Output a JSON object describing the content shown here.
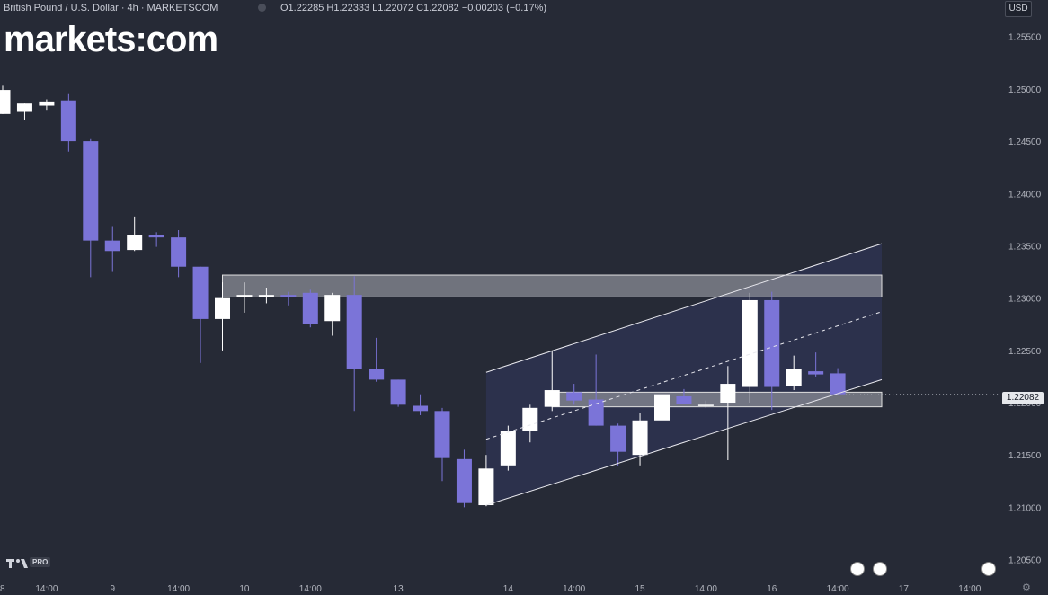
{
  "header": {
    "symbol_title": "British Pound / U.S. Dollar · 4h · MARKETSCOM",
    "ohlc": "O1.22285  H1.22333  L1.22072  C1.22082  −0.00203 (−0.17%)",
    "currency": "USD"
  },
  "brand": {
    "logo_text": "markets:com"
  },
  "footer": {
    "tv_badge": "PRO"
  },
  "colors": {
    "bull": "#ffffff",
    "bear": "#7b74d8",
    "background": "#262a36",
    "channel_fill": "#2e3250",
    "zone_fill": "#8a8c95"
  },
  "chart_data": {
    "type": "candlestick",
    "title": "British Pound / U.S. Dollar · 4h · MARKETSCOM",
    "y_range": [
      1.2035,
      1.2585
    ],
    "y_ticks": [
      "1.25500",
      "1.25000",
      "1.24500",
      "1.24000",
      "1.23500",
      "1.23000",
      "1.22500",
      "1.22000",
      "1.21500",
      "1.21000",
      "1.20500"
    ],
    "x_ticks": [
      {
        "i": -1,
        "label": "8"
      },
      {
        "i": 2,
        "label": "14:00"
      },
      {
        "i": 5,
        "label": "9"
      },
      {
        "i": 8,
        "label": "14:00"
      },
      {
        "i": 11,
        "label": "10"
      },
      {
        "i": 14,
        "label": "14:00"
      },
      {
        "i": 18,
        "label": "13"
      },
      {
        "i": 23,
        "label": "14"
      },
      {
        "i": 26,
        "label": "14:00"
      },
      {
        "i": 29,
        "label": "15"
      },
      {
        "i": 32,
        "label": "14:00"
      },
      {
        "i": 35,
        "label": "16"
      },
      {
        "i": 38,
        "label": "14:00"
      },
      {
        "i": 41,
        "label": "17"
      },
      {
        "i": 44,
        "label": "14:00"
      }
    ],
    "candles": [
      {
        "o": 1.2476,
        "h": 1.2503,
        "l": 1.2476,
        "c": 1.2499
      },
      {
        "o": 1.2478,
        "h": 1.2486,
        "l": 1.247,
        "c": 1.2486
      },
      {
        "o": 1.2484,
        "h": 1.249,
        "l": 1.248,
        "c": 1.2488
      },
      {
        "o": 1.2489,
        "h": 1.2495,
        "l": 1.244,
        "c": 1.245
      },
      {
        "o": 1.245,
        "h": 1.2452,
        "l": 1.232,
        "c": 1.2355
      },
      {
        "o": 1.2355,
        "h": 1.2368,
        "l": 1.2325,
        "c": 1.2345
      },
      {
        "o": 1.2346,
        "h": 1.2378,
        "l": 1.2345,
        "c": 1.236
      },
      {
        "o": 1.236,
        "h": 1.2363,
        "l": 1.2349,
        "c": 1.2358
      },
      {
        "o": 1.2358,
        "h": 1.2365,
        "l": 1.232,
        "c": 1.233
      },
      {
        "o": 1.233,
        "h": 1.233,
        "l": 1.2238,
        "c": 1.228
      },
      {
        "o": 1.228,
        "h": 1.2315,
        "l": 1.225,
        "c": 1.23
      },
      {
        "o": 1.2301,
        "h": 1.2315,
        "l": 1.2286,
        "c": 1.2303
      },
      {
        "o": 1.2301,
        "h": 1.231,
        "l": 1.2295,
        "c": 1.2303
      },
      {
        "o": 1.2303,
        "h": 1.2306,
        "l": 1.2293,
        "c": 1.2301
      },
      {
        "o": 1.2305,
        "h": 1.2308,
        "l": 1.2272,
        "c": 1.2275
      },
      {
        "o": 1.2278,
        "h": 1.2305,
        "l": 1.2264,
        "c": 1.2303
      },
      {
        "o": 1.2303,
        "h": 1.2321,
        "l": 1.2192,
        "c": 1.2232
      },
      {
        "o": 1.2232,
        "h": 1.2262,
        "l": 1.222,
        "c": 1.2222
      },
      {
        "o": 1.2222,
        "h": 1.2222,
        "l": 1.2196,
        "c": 1.2198
      },
      {
        "o": 1.2197,
        "h": 1.2208,
        "l": 1.2188,
        "c": 1.2192
      },
      {
        "o": 1.2192,
        "h": 1.2195,
        "l": 1.2125,
        "c": 1.2147
      },
      {
        "o": 1.2146,
        "h": 1.2155,
        "l": 1.21,
        "c": 1.2104
      },
      {
        "o": 1.2102,
        "h": 1.215,
        "l": 1.2101,
        "c": 1.2137
      },
      {
        "o": 1.214,
        "h": 1.2178,
        "l": 1.2135,
        "c": 1.2173
      },
      {
        "o": 1.2173,
        "h": 1.2198,
        "l": 1.2162,
        "c": 1.2195
      },
      {
        "o": 1.2196,
        "h": 1.225,
        "l": 1.2192,
        "c": 1.2212
      },
      {
        "o": 1.221,
        "h": 1.2218,
        "l": 1.2198,
        "c": 1.2202
      },
      {
        "o": 1.2203,
        "h": 1.2246,
        "l": 1.2178,
        "c": 1.2178
      },
      {
        "o": 1.2178,
        "h": 1.218,
        "l": 1.214,
        "c": 1.2153
      },
      {
        "o": 1.215,
        "h": 1.219,
        "l": 1.214,
        "c": 1.2183
      },
      {
        "o": 1.2183,
        "h": 1.2212,
        "l": 1.2182,
        "c": 1.2208
      },
      {
        "o": 1.2206,
        "h": 1.2213,
        "l": 1.2199,
        "c": 1.2199
      },
      {
        "o": 1.2198,
        "h": 1.2202,
        "l": 1.2195,
        "c": 1.2198
      },
      {
        "o": 1.22,
        "h": 1.2235,
        "l": 1.2145,
        "c": 1.2218
      },
      {
        "o": 1.2215,
        "h": 1.2305,
        "l": 1.22,
        "c": 1.2298
      },
      {
        "o": 1.2298,
        "h": 1.2306,
        "l": 1.2193,
        "c": 1.2215
      },
      {
        "o": 1.2216,
        "h": 1.2245,
        "l": 1.2212,
        "c": 1.2232
      },
      {
        "o": 1.223,
        "h": 1.2248,
        "l": 1.2225,
        "c": 1.2227
      },
      {
        "o": 1.2228,
        "h": 1.2233,
        "l": 1.2208,
        "c": 1.2208
      }
    ],
    "zones": [
      {
        "from_i": 10,
        "to_i": 40,
        "top": 1.2322,
        "bottom": 1.2301
      },
      {
        "from_i": 25,
        "to_i": 40,
        "top": 1.221,
        "bottom": 1.2196
      }
    ],
    "channel": {
      "from_i": 22,
      "to_i": 40,
      "upper": [
        1.2229,
        1.2352
      ],
      "middle": [
        1.2165,
        1.2287
      ],
      "lower": [
        1.2102,
        1.2222
      ]
    },
    "last_price": "1.22082"
  }
}
